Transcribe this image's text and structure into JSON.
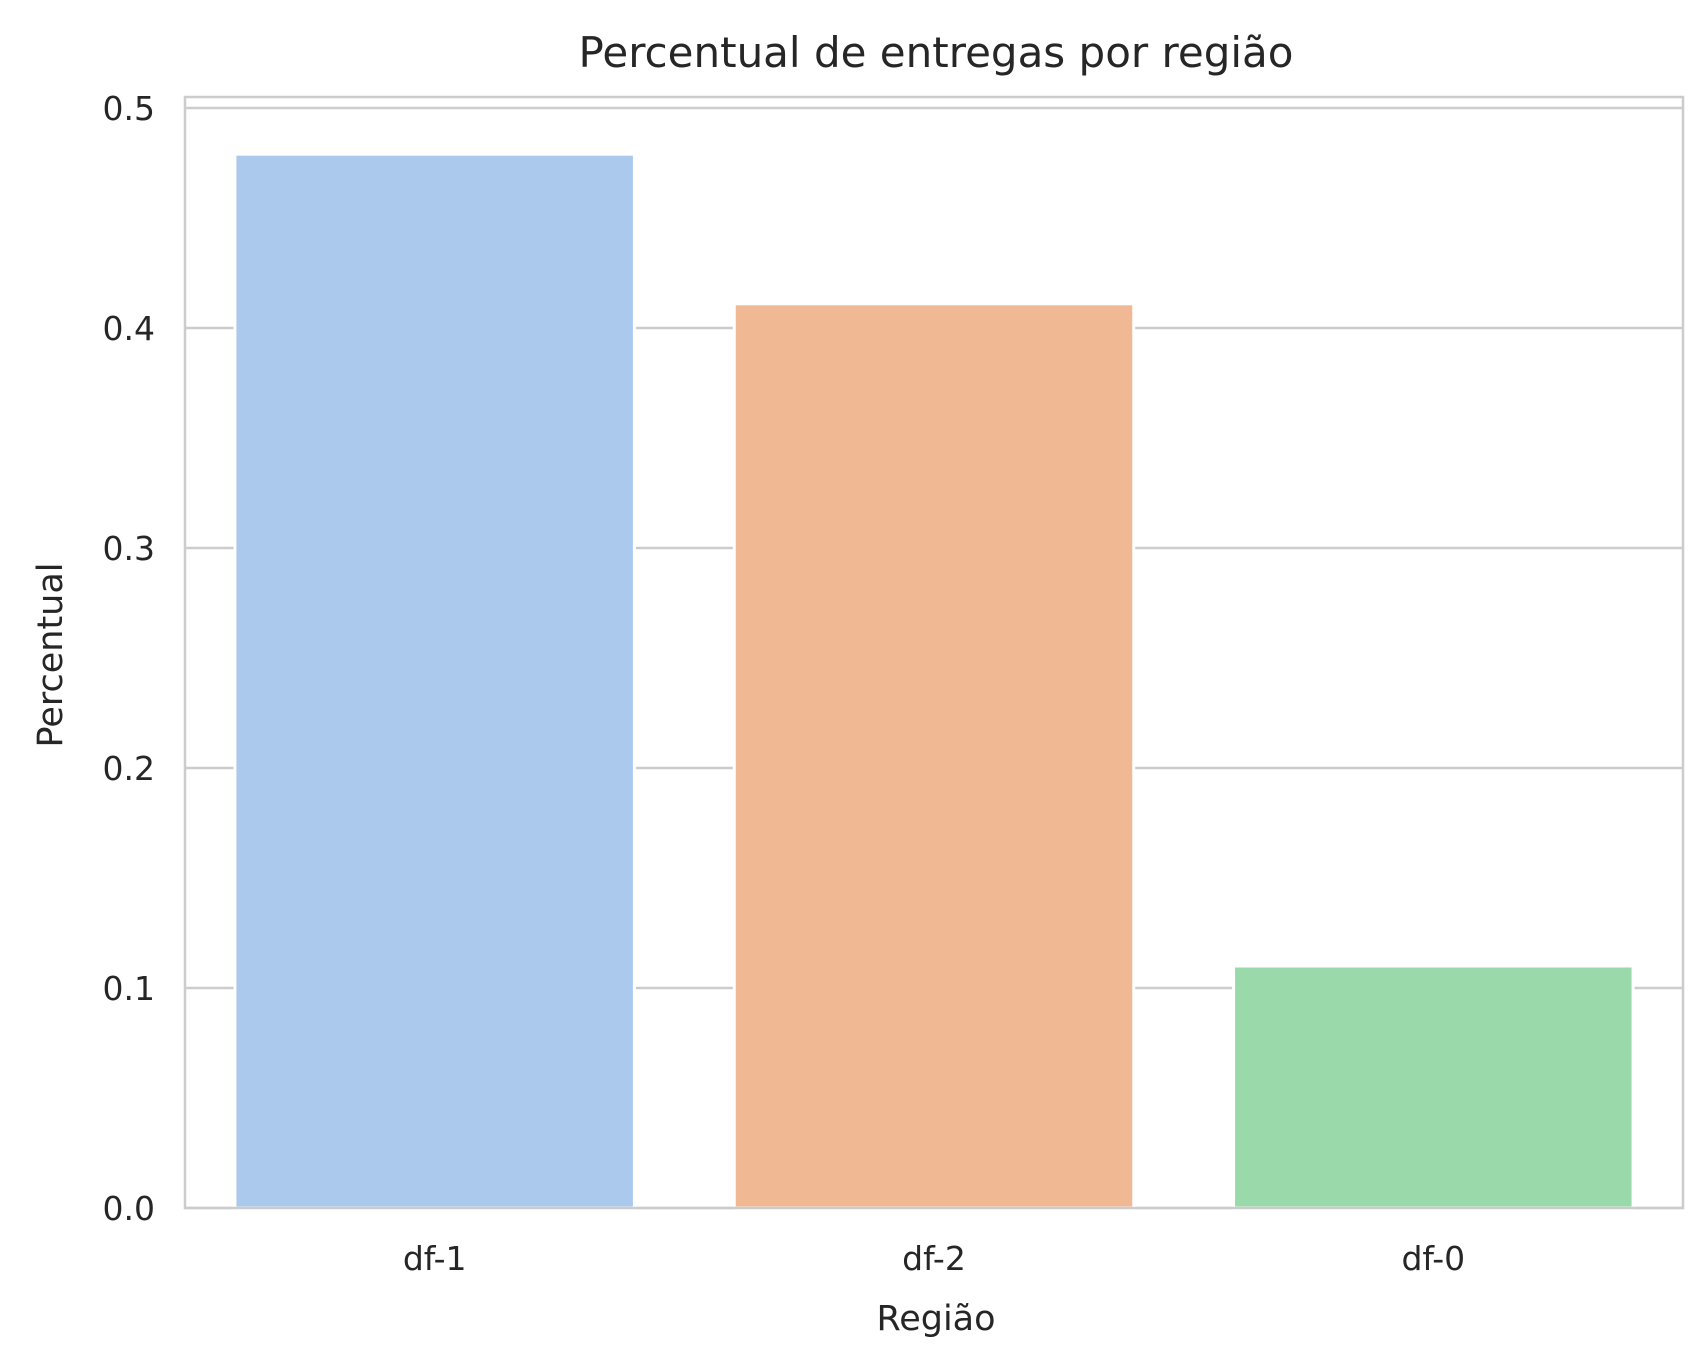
{
  "chart_data": {
    "type": "bar",
    "title": "Percentual de entregas por região",
    "xlabel": "Região",
    "ylabel": "Percentual",
    "categories": [
      "df-1",
      "df-2",
      "df-0"
    ],
    "values": [
      0.479,
      0.411,
      0.11
    ],
    "ylim": [
      0,
      0.505
    ],
    "yticks": [
      0.0,
      0.1,
      0.2,
      0.3,
      0.4,
      0.5
    ],
    "ytick_labels": [
      "0.0",
      "0.1",
      "0.2",
      "0.3",
      "0.4",
      "0.5"
    ],
    "colors": [
      "#abc9ec",
      "#f1b894",
      "#9ad9aa"
    ],
    "grid": "horizontal",
    "legend": "none"
  }
}
